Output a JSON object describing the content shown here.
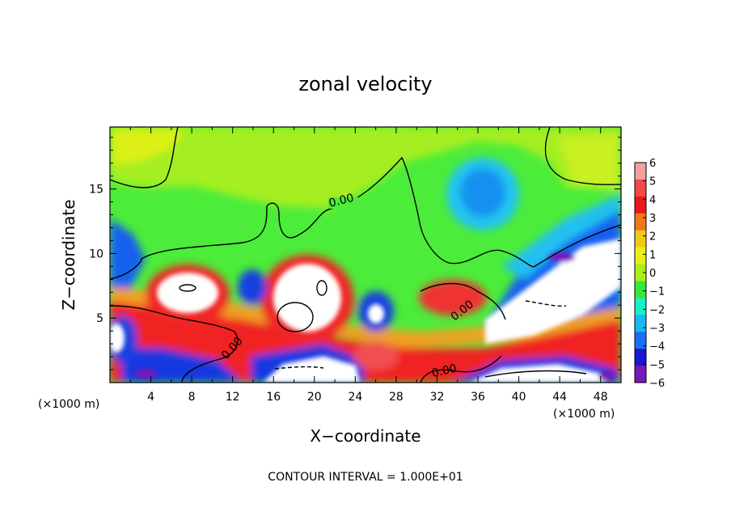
{
  "chart_data": {
    "type": "heatmap",
    "title": "zonal velocity",
    "xlabel": "X−coordinate",
    "ylabel": "Z−coordinate",
    "x_units": "(×1000 m)",
    "x_units_right": "(×1000 m)",
    "xlim": [
      0,
      50
    ],
    "ylim": [
      0,
      19.8
    ],
    "x_ticks": [
      "4",
      "8",
      "12",
      "16",
      "20",
      "24",
      "28",
      "32",
      "36",
      "40",
      "44",
      "48"
    ],
    "y_ticks": [
      "5",
      "10",
      "15"
    ],
    "contour_labels": [
      "0.00",
      "0.00",
      "0.00",
      "0.00"
    ],
    "colorbar": {
      "labels": [
        "6",
        "5",
        "4",
        "3",
        "2",
        "1",
        "0",
        "−1",
        "−2",
        "−3",
        "−4",
        "−5",
        "−6"
      ],
      "colors": [
        "#f4a0a0",
        "#f04a4a",
        "#e81818",
        "#f07818",
        "#f0c818",
        "#e6f018",
        "#a8f018",
        "#38e838",
        "#18f0c8",
        "#18b8f0",
        "#1870f0",
        "#1818d0",
        "#7818b8"
      ],
      "min": -6,
      "max": 6
    },
    "footer": "CONTOUR INTERVAL = 1.000E+01"
  }
}
